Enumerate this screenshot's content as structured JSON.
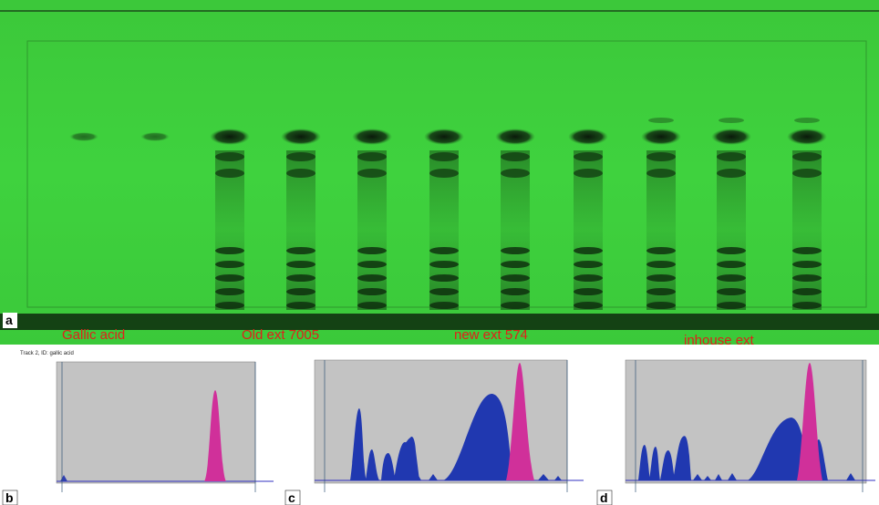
{
  "panels": {
    "a": "a",
    "b": "b",
    "c": "c",
    "d": "d"
  },
  "samples": [
    "Gallic acid",
    "Old ext 7005",
    "new ext 574",
    "inhouse ext"
  ],
  "track_title": "Track 2, ID: gallic acid"
}
